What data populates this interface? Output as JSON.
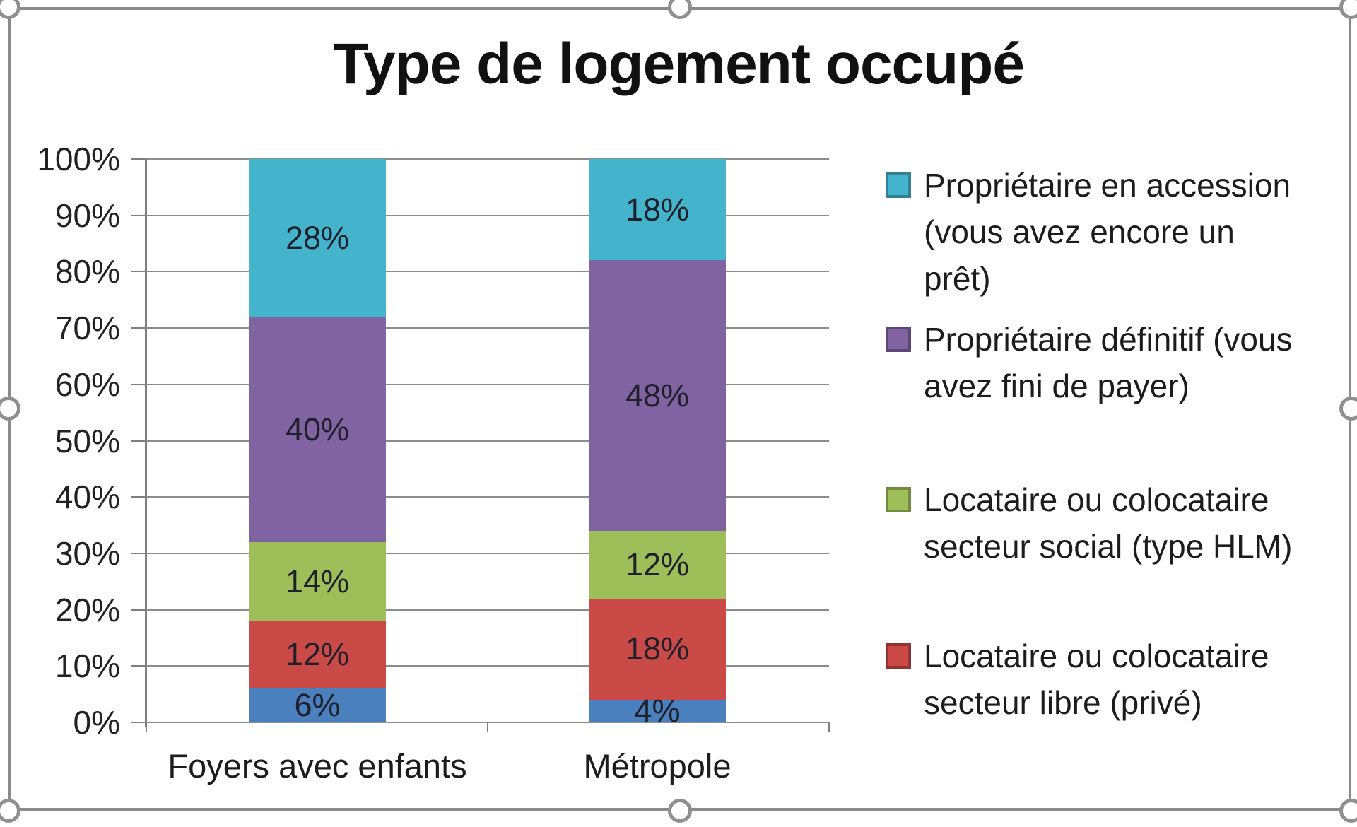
{
  "chart_data": {
    "type": "bar",
    "subtype": "stacked-100-percent",
    "title": "Type de logement occupé",
    "categories": [
      "Foyers avec enfants",
      "Métropole"
    ],
    "series": [
      {
        "name": "",
        "legend_visible": false,
        "color": "#4a80bd",
        "values": [
          6,
          4
        ]
      },
      {
        "name": "Locataire ou colocataire secteur libre (privé)",
        "legend_visible": true,
        "color": "#c94a46",
        "values": [
          12,
          18
        ]
      },
      {
        "name": "Locataire ou colocataire secteur social (type HLM)",
        "legend_visible": true,
        "color": "#9ebe59",
        "values": [
          14,
          12
        ]
      },
      {
        "name": "Propriétaire définitif (vous avez fini de payer)",
        "legend_visible": true,
        "color": "#8064a2",
        "values": [
          40,
          48
        ]
      },
      {
        "name": "Propriétaire en accession (vous avez encore un prêt)",
        "legend_visible": true,
        "color": "#44b3cc",
        "values": [
          28,
          18
        ]
      }
    ],
    "data_label_format": "percent",
    "y_axis": {
      "min": 0,
      "max": 100,
      "ticks": [
        "0%",
        "10%",
        "20%",
        "30%",
        "40%",
        "50%",
        "60%",
        "70%",
        "80%",
        "90%",
        "100%"
      ],
      "grid": true,
      "grid_color": "#8c8c8c",
      "axis_color": "#7f7f7f"
    },
    "legend": {
      "position": "right",
      "entries": [
        {
          "color": "#44b3cc",
          "lines": [
            "Propriétaire en accession",
            "(vous avez encore un",
            "prêt)"
          ]
        },
        {
          "color": "#8064a2",
          "lines": [
            "Propriétaire définitif (vous",
            "avez fini de payer)"
          ]
        },
        {
          "color": "#9ebe59",
          "lines": [
            "Locataire ou colocataire",
            "secteur social (type HLM)"
          ]
        },
        {
          "color": "#c94a46",
          "lines": [
            "Locataire ou colocataire",
            "secteur libre (privé)"
          ]
        }
      ]
    }
  },
  "frame": {
    "border_color": "#8a8a8a",
    "handle_color": "#8f8f8f"
  }
}
